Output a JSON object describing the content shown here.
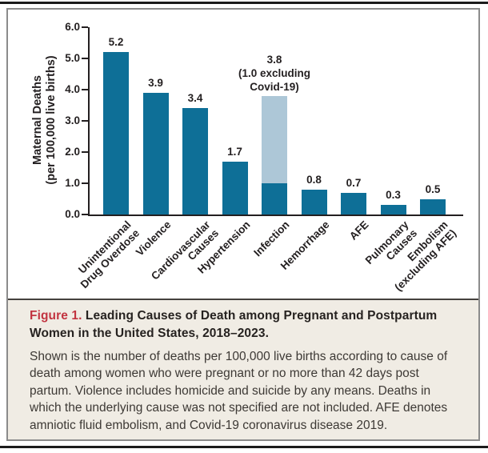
{
  "figure": {
    "caption": {
      "label": "Figure 1.",
      "title": "Leading Causes of Death among Pregnant and Postpartum Women in the United States, 2018–2023.",
      "body": "Shown is the number of deaths per 100,000 live births according to cause of death among women who were pregnant or no more than 42 days post partum. Violence includes homicide and suicide by any means. Deaths in which the underlying cause was not specified are not included. AFE denotes amniotic fluid embolism, and Covid-19 coronavirus disease 2019."
    }
  },
  "chart_data": {
    "type": "bar",
    "title": "",
    "xlabel": "",
    "ylabel": "Maternal Deaths (per 100,000 live births)",
    "ylabel_lines": [
      "Maternal Deaths",
      "(per 100,000 live births)"
    ],
    "ylim": [
      0.0,
      6.0
    ],
    "ytick_labels": [
      "0.0",
      "1.0",
      "2.0",
      "3.0",
      "4.0",
      "5.0",
      "6.0"
    ],
    "grid": false,
    "legend": "none",
    "categories": [
      "Unintentional Drug Overdose",
      "Violence",
      "Cardiovascular Causes",
      "Hypertension",
      "Infection",
      "Hemorrhage",
      "AFE",
      "Pulmonary Causes",
      "Embolism (excluding AFE)"
    ],
    "category_label_lines": [
      [
        "Unintentional",
        "Drug Overdose"
      ],
      [
        "Violence"
      ],
      [
        "Cardiovascular",
        "Causes"
      ],
      [
        "Hypertension"
      ],
      [
        "Infection"
      ],
      [
        "Hemorrhage"
      ],
      [
        "AFE"
      ],
      [
        "Pulmonary",
        "Causes"
      ],
      [
        "Embolism",
        "(excluding AFE)"
      ]
    ],
    "values": [
      5.2,
      3.9,
      3.4,
      1.7,
      3.8,
      0.8,
      0.7,
      0.3,
      0.5
    ],
    "bar_value_labels": [
      "5.2",
      "3.9",
      "3.4",
      "1.7",
      "3.8",
      "0.8",
      "0.7",
      "0.3",
      "0.5"
    ],
    "stacked_bar": {
      "category": "Infection",
      "category_index": 4,
      "total_value": 3.8,
      "non_covid_value": 1.0,
      "covid_value": 2.8,
      "annotation": "3.8 (1.0 excluding Covid-19)",
      "annotation_lines": [
        "3.8",
        "(1.0 excluding",
        "Covid-19)"
      ]
    },
    "colors": {
      "bar": "#0e6f97",
      "covid_segment": "#adc7d7",
      "axis_text": "#231f20",
      "figure_label_red": "#c23440",
      "caption_background": "#f0ece4"
    }
  }
}
